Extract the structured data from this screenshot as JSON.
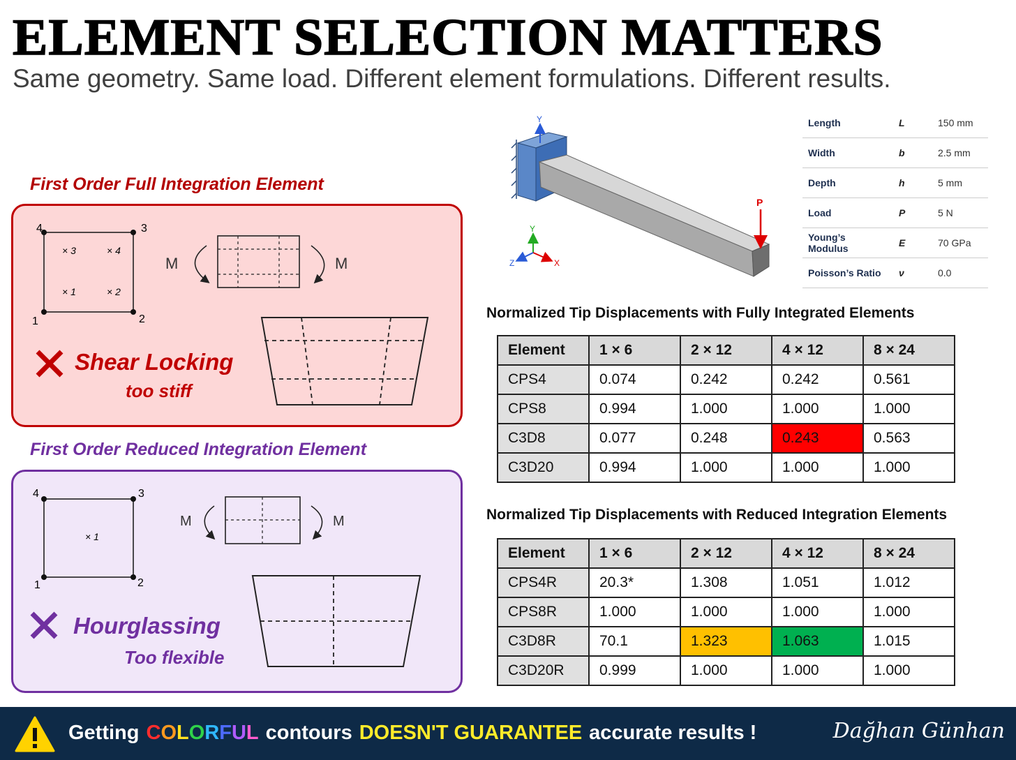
{
  "header": {
    "title": "ELEMENT SELECTION MATTERS",
    "subtitle": "Same geometry. Same load. Different element formulations. Different results."
  },
  "full_integration": {
    "title": "First Order Full Integration Element",
    "nodes": [
      "1",
      "2",
      "3",
      "4"
    ],
    "integration_points": [
      "× 1",
      "× 2",
      "× 3",
      "× 4"
    ],
    "moment_labels": [
      "M",
      "M"
    ],
    "issue": "Shear Locking",
    "effect": "too stiff"
  },
  "reduced_integration": {
    "title": "First Order Reduced Integration Element",
    "nodes": [
      "1",
      "2",
      "3",
      "4"
    ],
    "integration_points": [
      "× 1"
    ],
    "moment_labels": [
      "M",
      "M"
    ],
    "issue": "Hourglassing",
    "effect": "Too flexible"
  },
  "beam_figure": {
    "axes": [
      "Y",
      "Y",
      "Z",
      "X"
    ],
    "load": "P"
  },
  "properties": {
    "rows": [
      [
        "Length",
        "L",
        "150 mm"
      ],
      [
        "Width",
        "b",
        "2.5 mm"
      ],
      [
        "Depth",
        "h",
        "5 mm"
      ],
      [
        "Load",
        "P",
        "5 N"
      ],
      [
        "Young’s Modulus",
        "E",
        "70 GPa"
      ],
      [
        "Poisson’s Ratio",
        "ν",
        "0.0"
      ]
    ]
  },
  "fully_integrated_table": {
    "title": "Normalized Tip Displacements with Fully Integrated Elements",
    "header": [
      "Element",
      "1 × 6",
      "2 × 12",
      "4 × 12",
      "8 × 24"
    ],
    "rows": [
      [
        "CPS4",
        "0.074",
        "0.242",
        "0.242",
        "0.561"
      ],
      [
        "CPS8",
        "0.994",
        "1.000",
        "1.000",
        "1.000"
      ],
      [
        "C3D8",
        "0.077",
        "0.248",
        "0.243",
        "0.563"
      ],
      [
        "C3D20",
        "0.994",
        "1.000",
        "1.000",
        "1.000"
      ]
    ]
  },
  "reduced_integration_table": {
    "title": "Normalized Tip Displacements with Reduced Integration Elements",
    "header": [
      "Element",
      "1 × 6",
      "2 × 12",
      "4 × 12",
      "8 × 24"
    ],
    "rows": [
      [
        "CPS4R",
        "20.3*",
        "1.308",
        "1.051",
        "1.012"
      ],
      [
        "CPS8R",
        "1.000",
        "1.000",
        "1.000",
        "1.000"
      ],
      [
        "C3D8R",
        "70.1",
        "1.323",
        "1.063",
        "1.015"
      ],
      [
        "C3D20R",
        "0.999",
        "1.000",
        "1.000",
        "1.000"
      ]
    ]
  },
  "footer": {
    "parts": [
      "Getting",
      "COLORFUL",
      "contours",
      "DOESN'T GUARANTEE",
      "accurate results !"
    ],
    "signature": "Dağhan Günhan"
  }
}
